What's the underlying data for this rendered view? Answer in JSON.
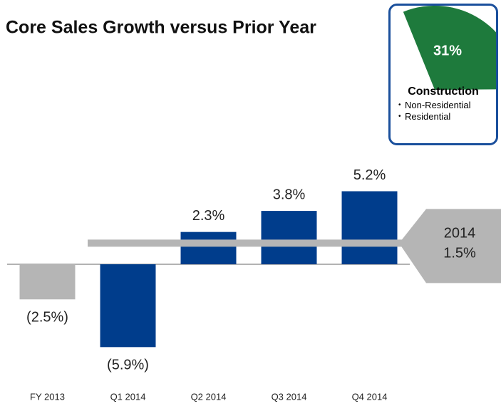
{
  "chart_data": {
    "type": "bar",
    "title": "Core Sales Growth versus Prior Year",
    "categories": [
      "FY 2013",
      "Q1 2014",
      "Q2 2014",
      "Q3 2014",
      "Q4 2014"
    ],
    "values": [
      -2.5,
      -5.9,
      2.3,
      3.8,
      5.2
    ],
    "value_labels": [
      "(2.5%)",
      "(5.9%)",
      "2.3%",
      "3.8%",
      "5.2%"
    ],
    "colors": [
      "#b5b5b5",
      "#003d8c",
      "#003d8c",
      "#003d8c",
      "#003d8c"
    ],
    "ylim": [
      -7,
      7
    ],
    "reference_line": {
      "label": "2014",
      "value": 1.5,
      "value_label": "1.5%",
      "color": "#b5b5b5"
    },
    "inset": {
      "value": 31,
      "value_label": "31%",
      "color": "#1e7a3c",
      "title": "Construction",
      "items": [
        "Non-Residential",
        "Residential"
      ]
    }
  }
}
